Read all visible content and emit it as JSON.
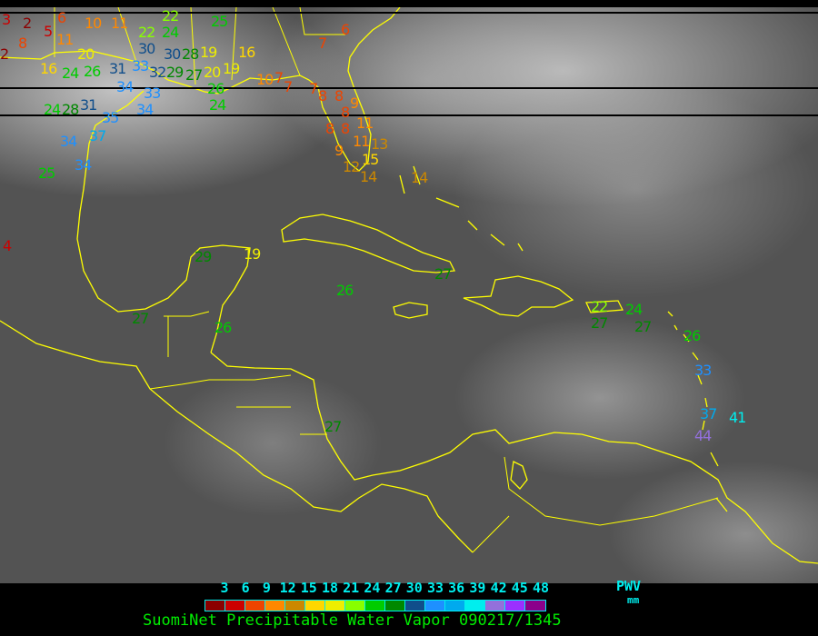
{
  "legend": {
    "ticks": [
      "3",
      "6",
      "9",
      "12",
      "15",
      "18",
      "21",
      "24",
      "27",
      "30",
      "33",
      "36",
      "39",
      "42",
      "45",
      "48"
    ],
    "colors": [
      "#8b0000",
      "#cc0000",
      "#ee4400",
      "#ff8800",
      "#cc8800",
      "#ffd700",
      "#eeee00",
      "#88ff00",
      "#00cc00",
      "#008800",
      "#104e8b",
      "#1e90ff",
      "#00aaee",
      "#00eeee",
      "#9370db",
      "#9b30ff",
      "#8b008b"
    ],
    "unit_label": "PWV",
    "unit_sub": "mm"
  },
  "title": "SuomiNet Precipitable Water Vapor 090217/1345",
  "coastline_color": "#ffff00",
  "stations": [
    "3",
    "2",
    "5",
    "6",
    "10",
    "11",
    "8",
    "11",
    "2",
    "20",
    "16",
    "24",
    "26",
    "31",
    "33",
    "30",
    "30",
    "32",
    "29",
    "27",
    "28",
    "19",
    "20",
    "19",
    "16",
    "25",
    "22",
    "24",
    "22",
    "34",
    "33",
    "24",
    "28",
    "31",
    "35",
    "34",
    "34",
    "37",
    "34",
    "25",
    "26",
    "24",
    "10",
    "7",
    "7",
    "6",
    "7",
    "7",
    "8",
    "8",
    "9",
    "8",
    "8",
    "8",
    "11",
    "11",
    "13",
    "9",
    "15",
    "12",
    "14",
    "14",
    "4",
    "29",
    "19",
    "26",
    "27",
    "27",
    "26",
    "22",
    "27",
    "24",
    "27",
    "26",
    "33",
    "37",
    "41",
    "44",
    "27"
  ]
}
